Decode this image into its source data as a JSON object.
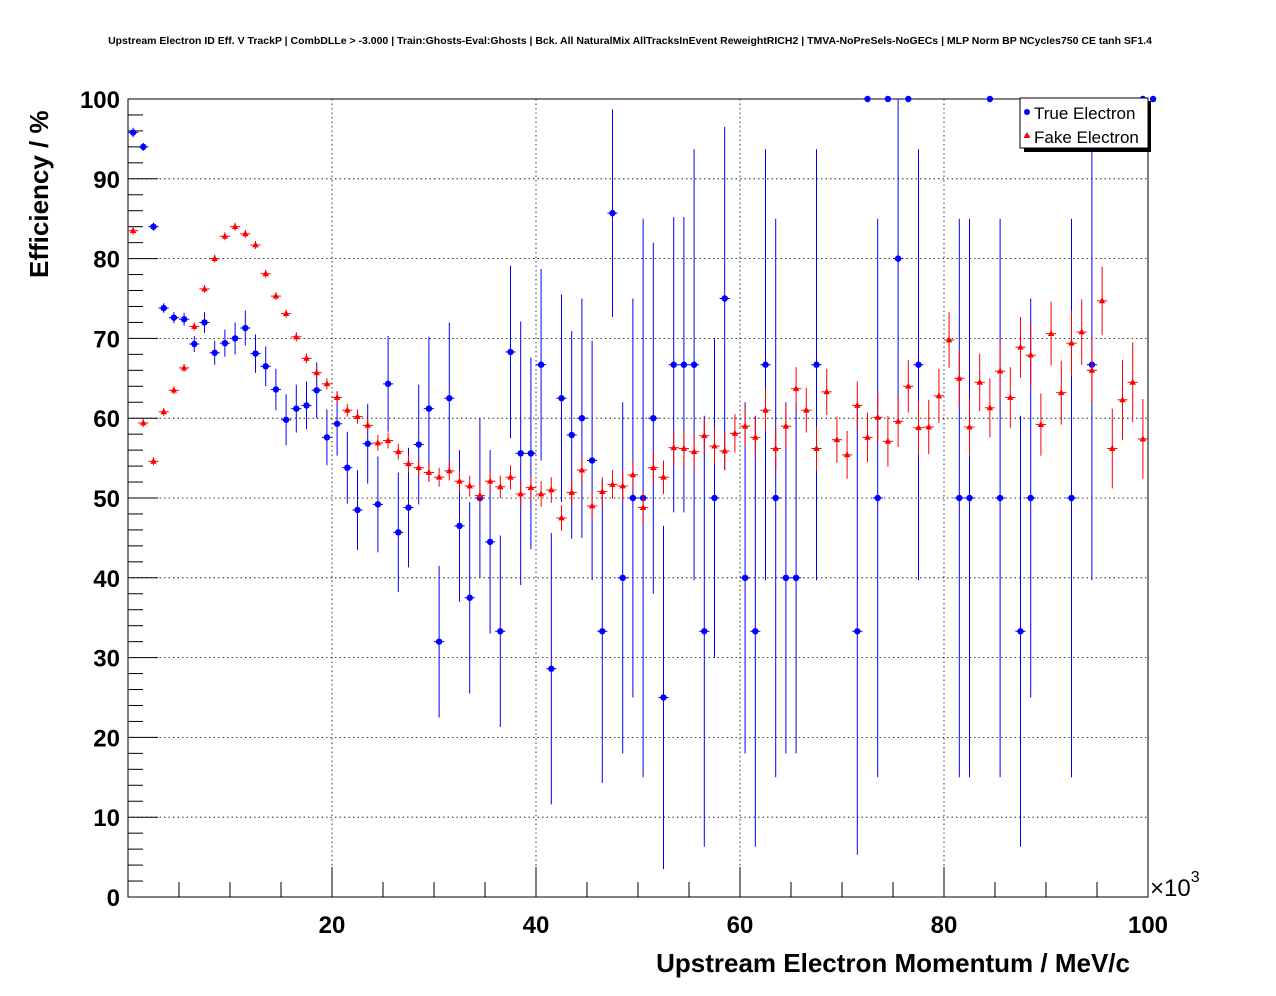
{
  "chart_data": {
    "type": "scatter",
    "title": "Upstream Electron ID Eff. V TrackP | CombDLLe > -3.000 | Train:Ghosts-Eval:Ghosts | Bck. All NaturalMix AllTracksInEvent ReweightRICH2 | TMVA-NoPreSels-NoGECs | MLP Norm BP NCycles750 CE tanh SF1.4",
    "xlabel": "Upstream Electron Momentum / MeV/c",
    "ylabel": "Efficiency / %",
    "x_multiplier_label": "×10",
    "x_multiplier_exp": "3",
    "xlim": [
      0,
      100000
    ],
    "ylim": [
      0,
      100
    ],
    "x_ticks": [
      20000,
      40000,
      60000,
      80000,
      100000
    ],
    "x_tick_labels": [
      "20",
      "40",
      "60",
      "80",
      "100"
    ],
    "y_ticks": [
      0,
      10,
      20,
      30,
      40,
      50,
      60,
      70,
      80,
      90,
      100
    ],
    "y_tick_labels": [
      "0",
      "10",
      "20",
      "30",
      "40",
      "50",
      "60",
      "70",
      "80",
      "90",
      "100"
    ],
    "grid": true,
    "legend_position": "top-right",
    "colors": {
      "true": "#0000ff",
      "fake": "#ff0000"
    },
    "series": [
      {
        "name": "True Electron",
        "marker": "circle",
        "points": [
          [
            500,
            95.8,
            0.6
          ],
          [
            1500,
            94.0,
            0.5
          ],
          [
            2500,
            84.0,
            0.5
          ],
          [
            3500,
            73.8,
            0.6
          ],
          [
            4500,
            72.6,
            0.7
          ],
          [
            5500,
            72.4,
            0.8
          ],
          [
            6500,
            69.3,
            1.0
          ],
          [
            7500,
            72.0,
            1.3
          ],
          [
            8500,
            68.2,
            1.5
          ],
          [
            9500,
            69.4,
            1.7
          ],
          [
            10500,
            70.0,
            2.0
          ],
          [
            11500,
            71.3,
            2.2
          ],
          [
            12500,
            68.1,
            2.4
          ],
          [
            13500,
            66.5,
            2.5
          ],
          [
            14500,
            63.6,
            2.6
          ],
          [
            15500,
            59.8,
            3.2
          ],
          [
            16500,
            61.2,
            3.0
          ],
          [
            17500,
            61.6,
            3.0
          ],
          [
            18500,
            63.5,
            3.5
          ],
          [
            19500,
            57.6,
            3.5
          ],
          [
            20500,
            59.3,
            4.0
          ],
          [
            21500,
            53.8,
            4.5
          ],
          [
            22500,
            48.5,
            5.0
          ],
          [
            23500,
            56.8,
            5.0
          ],
          [
            24500,
            49.2,
            6.0
          ],
          [
            25500,
            64.3,
            6.0
          ],
          [
            26500,
            45.7,
            7.5
          ],
          [
            27500,
            48.8,
            7.5
          ],
          [
            28500,
            56.7,
            7.5
          ],
          [
            29500,
            61.2,
            9.0
          ],
          [
            30500,
            32.0,
            9.5
          ],
          [
            31500,
            62.5,
            9.5
          ],
          [
            32500,
            46.5,
            9.5
          ],
          [
            33500,
            37.5,
            12.0
          ],
          [
            34500,
            50.0,
            10.0
          ],
          [
            35500,
            44.5,
            11.5
          ],
          [
            36500,
            33.3,
            12.0
          ],
          [
            37500,
            68.3,
            10.8
          ],
          [
            38500,
            55.6,
            16.5
          ],
          [
            39500,
            55.6,
            12.0
          ],
          [
            40500,
            66.7,
            12.0
          ],
          [
            41500,
            28.6,
            17.0
          ],
          [
            42500,
            62.5,
            13.0
          ],
          [
            43500,
            57.9,
            13.0
          ],
          [
            44500,
            60.0,
            15.0
          ],
          [
            45500,
            54.7,
            15.0
          ],
          [
            46500,
            33.3,
            19.0
          ],
          [
            47500,
            85.7,
            13.0
          ],
          [
            48500,
            40.0,
            22.0
          ],
          [
            49500,
            50.0,
            25.0
          ],
          [
            50500,
            50.0,
            35.0
          ],
          [
            51500,
            60.0,
            22.0
          ],
          [
            52500,
            25.0,
            21.5
          ],
          [
            53500,
            66.7,
            18.5
          ],
          [
            54500,
            66.7,
            18.5
          ],
          [
            55500,
            66.7,
            27.0
          ],
          [
            56500,
            33.3,
            27.0
          ],
          [
            57500,
            50.0,
            20.0
          ],
          [
            58500,
            75.0,
            21.5
          ],
          [
            60500,
            40.0,
            22.0
          ],
          [
            61500,
            33.3,
            27.0
          ],
          [
            62500,
            66.7,
            27.0
          ],
          [
            63500,
            50.0,
            35.0
          ],
          [
            64500,
            40.0,
            22.0
          ],
          [
            65500,
            40.0,
            22.0
          ],
          [
            67500,
            66.7,
            27.0
          ],
          [
            71500,
            33.3,
            28.0
          ],
          [
            72500,
            100.0,
            0
          ],
          [
            73500,
            50.0,
            35.0
          ],
          [
            74500,
            100.0,
            0
          ],
          [
            75500,
            80.0,
            20.0
          ],
          [
            76500,
            100.0,
            0
          ],
          [
            77500,
            66.7,
            27.0
          ],
          [
            81500,
            50.0,
            35.0
          ],
          [
            82500,
            50.0,
            35.0
          ],
          [
            84500,
            100.0,
            0
          ],
          [
            85500,
            50.0,
            35.0
          ],
          [
            87500,
            33.3,
            27.0
          ],
          [
            88500,
            50.0,
            25.0
          ],
          [
            92500,
            50.0,
            35.0
          ],
          [
            94500,
            66.7,
            27.0
          ],
          [
            99500,
            100.0,
            0
          ],
          [
            100500,
            100.0,
            0
          ]
        ]
      },
      {
        "name": "Fake Electron",
        "marker": "triangle",
        "points": [
          [
            500,
            83.5,
            0.5
          ],
          [
            1500,
            59.4,
            0.5
          ],
          [
            2500,
            54.6,
            0.5
          ],
          [
            3500,
            60.8,
            0.5
          ],
          [
            4500,
            63.5,
            0.5
          ],
          [
            5500,
            66.3,
            0.5
          ],
          [
            6500,
            71.5,
            0.5
          ],
          [
            7500,
            76.2,
            0.5
          ],
          [
            8500,
            80.0,
            0.5
          ],
          [
            9500,
            82.8,
            0.5
          ],
          [
            10500,
            84.0,
            0.5
          ],
          [
            11500,
            83.1,
            0.5
          ],
          [
            12500,
            81.7,
            0.5
          ],
          [
            13500,
            78.1,
            0.5
          ],
          [
            14500,
            75.3,
            0.5
          ],
          [
            15500,
            73.1,
            0.5
          ],
          [
            16500,
            70.2,
            0.6
          ],
          [
            17500,
            67.5,
            0.6
          ],
          [
            18500,
            65.7,
            0.7
          ],
          [
            19500,
            64.3,
            0.7
          ],
          [
            20500,
            62.6,
            0.8
          ],
          [
            21500,
            61.0,
            0.8
          ],
          [
            22500,
            60.2,
            0.9
          ],
          [
            23500,
            59.1,
            0.9
          ],
          [
            24500,
            56.9,
            1.0
          ],
          [
            25500,
            57.2,
            1.0
          ],
          [
            26500,
            55.8,
            1.0
          ],
          [
            27500,
            54.3,
            1.1
          ],
          [
            28500,
            53.8,
            1.1
          ],
          [
            29500,
            53.2,
            1.2
          ],
          [
            30500,
            52.6,
            1.2
          ],
          [
            31500,
            53.4,
            1.2
          ],
          [
            32500,
            52.1,
            1.3
          ],
          [
            33500,
            51.5,
            1.3
          ],
          [
            34500,
            50.3,
            1.3
          ],
          [
            35500,
            52.1,
            1.4
          ],
          [
            36500,
            51.4,
            1.4
          ],
          [
            37500,
            52.6,
            1.5
          ],
          [
            38500,
            50.5,
            1.5
          ],
          [
            39500,
            51.3,
            1.5
          ],
          [
            40500,
            50.5,
            1.6
          ],
          [
            41500,
            51.0,
            1.6
          ],
          [
            42500,
            47.5,
            1.6
          ],
          [
            43500,
            50.7,
            1.7
          ],
          [
            44500,
            53.5,
            1.7
          ],
          [
            45500,
            49.0,
            1.8
          ],
          [
            46500,
            50.8,
            1.8
          ],
          [
            47500,
            51.7,
            1.8
          ],
          [
            48500,
            51.5,
            1.9
          ],
          [
            49500,
            52.9,
            1.9
          ],
          [
            50500,
            48.8,
            2.0
          ],
          [
            51500,
            53.8,
            2.0
          ],
          [
            52500,
            52.6,
            2.1
          ],
          [
            53500,
            56.3,
            2.1
          ],
          [
            54500,
            56.2,
            2.2
          ],
          [
            55500,
            55.8,
            2.2
          ],
          [
            56500,
            57.8,
            2.3
          ],
          [
            57500,
            56.5,
            2.3
          ],
          [
            58500,
            55.9,
            2.4
          ],
          [
            59500,
            58.1,
            2.4
          ],
          [
            60500,
            59.0,
            2.5
          ],
          [
            61500,
            57.6,
            2.5
          ],
          [
            62500,
            61.0,
            2.6
          ],
          [
            63500,
            56.2,
            2.6
          ],
          [
            64500,
            59.0,
            2.7
          ],
          [
            65500,
            63.7,
            2.7
          ],
          [
            66500,
            61.0,
            2.8
          ],
          [
            67500,
            56.2,
            2.8
          ],
          [
            68500,
            63.3,
            2.9
          ],
          [
            69500,
            57.3,
            2.9
          ],
          [
            70500,
            55.4,
            3.0
          ],
          [
            71500,
            61.6,
            3.0
          ],
          [
            72500,
            57.6,
            3.1
          ],
          [
            73500,
            60.1,
            3.1
          ],
          [
            74500,
            57.1,
            3.2
          ],
          [
            75500,
            59.6,
            3.2
          ],
          [
            76500,
            64.0,
            3.3
          ],
          [
            77500,
            58.8,
            3.3
          ],
          [
            78500,
            58.9,
            3.4
          ],
          [
            79500,
            62.8,
            3.4
          ],
          [
            80500,
            69.8,
            3.5
          ],
          [
            81500,
            65.0,
            3.5
          ],
          [
            82500,
            58.9,
            3.6
          ],
          [
            83500,
            64.5,
            3.6
          ],
          [
            84500,
            61.3,
            3.7
          ],
          [
            85500,
            65.9,
            3.7
          ],
          [
            86500,
            62.6,
            3.8
          ],
          [
            87500,
            68.9,
            3.8
          ],
          [
            88500,
            67.9,
            3.9
          ],
          [
            89500,
            59.2,
            3.9
          ],
          [
            90500,
            70.6,
            4.0
          ],
          [
            91500,
            63.2,
            4.0
          ],
          [
            92500,
            69.4,
            4.1
          ],
          [
            93500,
            70.8,
            4.1
          ],
          [
            94500,
            66.0,
            4.2
          ],
          [
            95500,
            74.7,
            4.3
          ],
          [
            96500,
            56.2,
            5.0
          ],
          [
            97500,
            62.3,
            5.0
          ],
          [
            98500,
            64.5,
            5.0
          ],
          [
            99500,
            57.4,
            5.0
          ]
        ]
      }
    ]
  }
}
